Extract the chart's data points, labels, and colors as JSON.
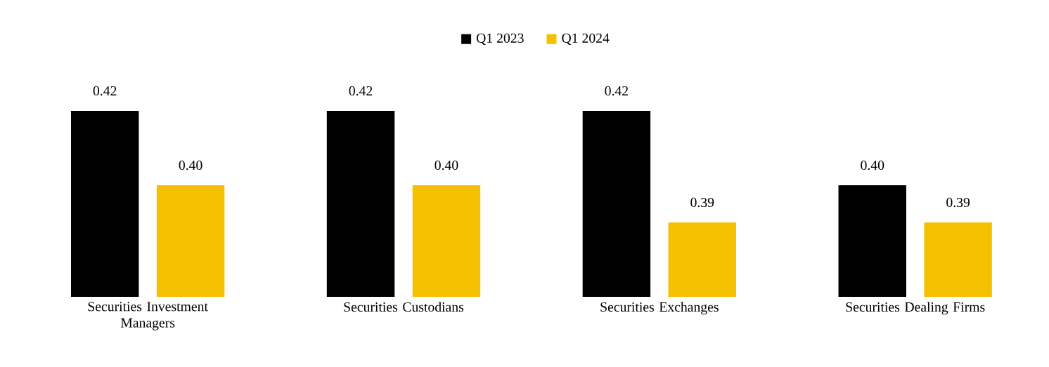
{
  "chart_data": {
    "type": "bar",
    "categories": [
      "Securities Investment Managers",
      "Securities Custodians",
      "Securities Exchanges",
      "Securities Dealing Firms"
    ],
    "series": [
      {
        "name": "Q1 2023",
        "color": "#000000",
        "values": [
          0.42,
          0.42,
          0.42,
          0.4
        ],
        "value_labels": [
          "0.42",
          "0.42",
          "0.42",
          "0.40"
        ]
      },
      {
        "name": "Q1 2024",
        "color": "#f5c000",
        "values": [
          0.4,
          0.4,
          0.39,
          0.39
        ],
        "value_labels": [
          "0.40",
          "0.40",
          "0.39",
          "0.39"
        ]
      }
    ],
    "ylim": [
      0.37,
      0.42
    ],
    "legend": "top"
  }
}
